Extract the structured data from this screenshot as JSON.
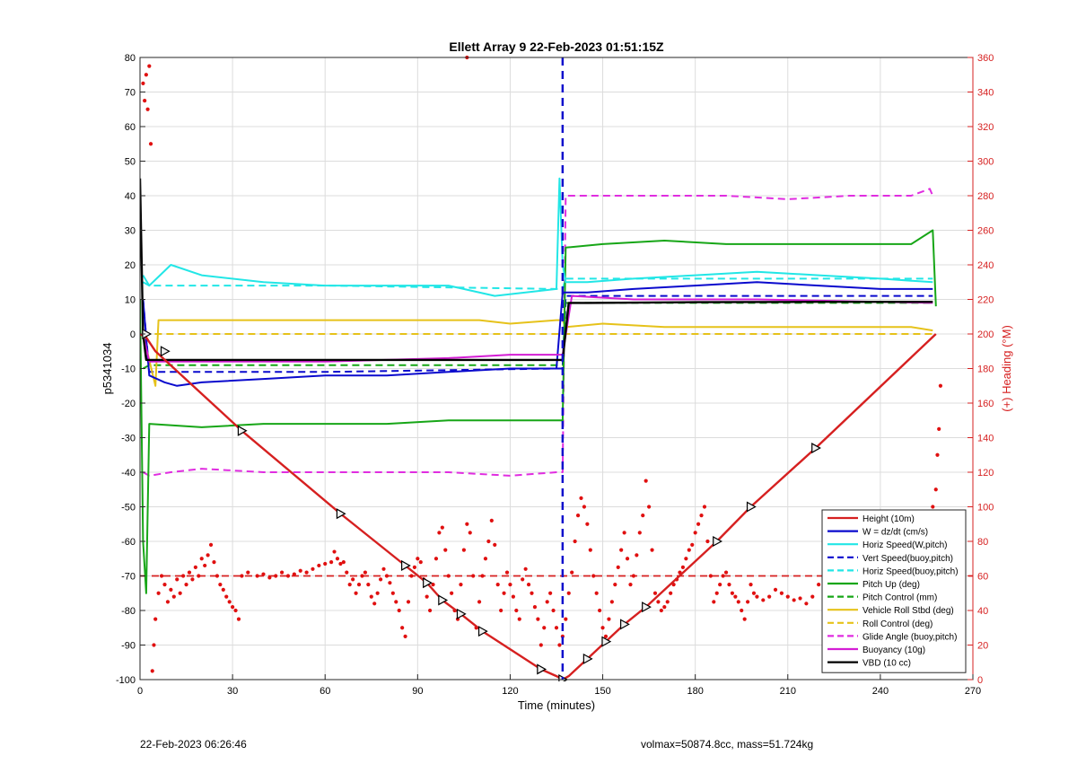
{
  "chart_data": {
    "type": "line",
    "title": "Ellett Array 9 22-Feb-2023 01:51:15Z",
    "xlabel": "Time (minutes)",
    "ylabel": "p5341034",
    "y2label": "(+) Heading (°M)",
    "xlim": [
      0,
      270
    ],
    "ylim": [
      -100,
      80
    ],
    "y2lim": [
      0,
      360
    ],
    "xticks": [
      0,
      30,
      60,
      90,
      120,
      150,
      180,
      210,
      240,
      270
    ],
    "yticks": [
      -100,
      -90,
      -80,
      -70,
      -60,
      -50,
      -40,
      -30,
      -20,
      -10,
      0,
      10,
      20,
      30,
      40,
      50,
      60,
      70,
      80
    ],
    "y2ticks": [
      0,
      20,
      40,
      60,
      80,
      100,
      120,
      140,
      160,
      180,
      200,
      220,
      240,
      260,
      280,
      300,
      320,
      340,
      360
    ],
    "grid": true,
    "legend_position": "bottom-right",
    "apogee_marker_x": 137,
    "colors": {
      "height": "#d62020",
      "w": "#0a0acd",
      "horiz": "#22e6e6",
      "pitch": "#17a617",
      "roll": "#e6c21a",
      "glide": "#e02de0",
      "buoy": "#d41ed4",
      "vbd": "#000000",
      "heading": "#e01010",
      "apogee": "#1010cc"
    },
    "series": [
      {
        "name": "Height (10m)",
        "axis": "left",
        "style": "solid",
        "color": "#d62020",
        "x": [
          0,
          2,
          5,
          33,
          65,
          86,
          93,
          98,
          104,
          111,
          130,
          135,
          137,
          139,
          145,
          151,
          157,
          164,
          187,
          198,
          219,
          258
        ],
        "y": [
          0,
          -1,
          -5,
          -28,
          -52,
          -67,
          -72,
          -77,
          -81,
          -86,
          -97,
          -99,
          -100,
          -99,
          -94,
          -89,
          -84,
          -79,
          -60,
          -50,
          -33,
          0
        ]
      },
      {
        "name": "W = dz/dt (cm/s)",
        "axis": "left",
        "style": "solid",
        "color": "#0a0acd",
        "x": [
          1,
          3,
          8,
          12,
          20,
          40,
          60,
          80,
          100,
          120,
          135,
          137,
          138,
          145,
          160,
          180,
          200,
          220,
          240,
          257
        ],
        "y": [
          10,
          -12,
          -14,
          -15,
          -14,
          -13,
          -12,
          -12,
          -11,
          -10,
          -10,
          12,
          12,
          12,
          13,
          14,
          15,
          14,
          13,
          13
        ]
      },
      {
        "name": "Horiz Speed(W,pitch)",
        "axis": "left",
        "style": "solid",
        "color": "#22e6e6",
        "x": [
          1,
          3,
          10,
          20,
          40,
          60,
          80,
          100,
          115,
          125,
          135,
          136,
          137,
          138,
          145,
          160,
          180,
          200,
          220,
          240,
          257
        ],
        "y": [
          17,
          14,
          20,
          17,
          15,
          14,
          14,
          14,
          11,
          12,
          13,
          45,
          20,
          15,
          15,
          16,
          17,
          18,
          17,
          16,
          15
        ]
      },
      {
        "name": "Vert Speed(buoy,pitch)",
        "axis": "left",
        "style": "dashed",
        "color": "#0a0acd",
        "x": [
          1,
          3,
          60,
          135,
          137,
          138,
          257
        ],
        "y": [
          10,
          -11,
          -11,
          -10,
          -10,
          11,
          11
        ]
      },
      {
        "name": "Horiz Speed(buoy,pitch)",
        "axis": "left",
        "style": "dashed",
        "color": "#22e6e6",
        "x": [
          1,
          3,
          60,
          135,
          137,
          138,
          257
        ],
        "y": [
          15,
          14,
          14,
          13,
          13,
          16,
          16
        ]
      },
      {
        "name": "Pitch Up (deg)",
        "axis": "left",
        "style": "solid",
        "color": "#17a617",
        "x": [
          0,
          1,
          2,
          3,
          20,
          40,
          60,
          80,
          100,
          120,
          135,
          137,
          138,
          150,
          170,
          190,
          210,
          230,
          250,
          257,
          258
        ],
        "y": [
          10,
          -60,
          -75,
          -26,
          -27,
          -26,
          -26,
          -26,
          -25,
          -25,
          -25,
          -25,
          25,
          26,
          27,
          26,
          26,
          26,
          26,
          30,
          8
        ]
      },
      {
        "name": "Pitch Control (mm)",
        "axis": "left",
        "style": "dashed",
        "color": "#17a617",
        "x": [
          1,
          3,
          135,
          137,
          138,
          257
        ],
        "y": [
          -10,
          -9,
          -9,
          -9,
          9,
          9
        ]
      },
      {
        "name": "Vehicle Roll Stbd (deg)",
        "axis": "left",
        "style": "solid",
        "color": "#e6c21a",
        "x": [
          1,
          5,
          6,
          30,
          60,
          90,
          110,
          120,
          135,
          137,
          138,
          150,
          170,
          190,
          210,
          230,
          250,
          257
        ],
        "y": [
          0,
          -15,
          4,
          4,
          4,
          4,
          4,
          3,
          4,
          4,
          2,
          3,
          2,
          2,
          2,
          2,
          2,
          1
        ]
      },
      {
        "name": "Roll Control (deg)",
        "axis": "left",
        "style": "dashed",
        "color": "#e6c21a",
        "x": [
          1,
          5,
          6,
          135,
          137,
          138,
          257
        ],
        "y": [
          0,
          0,
          0,
          0,
          0,
          0,
          0
        ]
      },
      {
        "name": "Glide Angle (buoy,pitch)",
        "axis": "left",
        "style": "dashed",
        "color": "#e02de0",
        "x": [
          1,
          3,
          10,
          20,
          40,
          60,
          80,
          100,
          120,
          135,
          137,
          138,
          150,
          170,
          190,
          210,
          230,
          250,
          256,
          257
        ],
        "y": [
          -40,
          -41,
          -40,
          -39,
          -40,
          -40,
          -40,
          -40,
          -41,
          -40,
          -40,
          40,
          40,
          40,
          40,
          39,
          40,
          40,
          42,
          40
        ]
      },
      {
        "name": "Buoyancy (10g)",
        "axis": "left",
        "style": "solid",
        "color": "#d41ed4",
        "x": [
          1,
          3,
          60,
          100,
          120,
          135,
          137,
          140,
          160,
          200,
          257
        ],
        "y": [
          0,
          -8,
          -8,
          -7,
          -6,
          -6,
          -6,
          11,
          10,
          10,
          9
        ]
      },
      {
        "name": "VBD (10 cc)",
        "axis": "left",
        "style": "solid",
        "color": "#000000",
        "x": [
          0,
          1,
          2,
          20,
          60,
          100,
          120,
          135,
          136,
          137,
          139,
          145,
          180,
          220,
          257
        ],
        "y": [
          45,
          0,
          -7.5,
          -7.5,
          -7.5,
          -7.5,
          -7.5,
          -7.5,
          -7.5,
          -7.5,
          9,
          9,
          9.2,
          9.3,
          9.3
        ]
      }
    ],
    "heading_reference": {
      "axis": "right",
      "style": "dashed",
      "color": "#d62020",
      "y": 60
    },
    "heading_points": [
      [
        1,
        345
      ],
      [
        1.5,
        335
      ],
      [
        2,
        350
      ],
      [
        2.5,
        330
      ],
      [
        3,
        355
      ],
      [
        3.5,
        310
      ],
      [
        4,
        5
      ],
      [
        4.5,
        20
      ],
      [
        5,
        35
      ],
      [
        6,
        50
      ],
      [
        7,
        60
      ],
      [
        8,
        55
      ],
      [
        9,
        45
      ],
      [
        10,
        52
      ],
      [
        11,
        48
      ],
      [
        12,
        58
      ],
      [
        13,
        50
      ],
      [
        14,
        60
      ],
      [
        15,
        55
      ],
      [
        16,
        62
      ],
      [
        17,
        58
      ],
      [
        18,
        65
      ],
      [
        19,
        60
      ],
      [
        20,
        70
      ],
      [
        21,
        66
      ],
      [
        22,
        72
      ],
      [
        23,
        78
      ],
      [
        24,
        68
      ],
      [
        25,
        60
      ],
      [
        26,
        55
      ],
      [
        27,
        52
      ],
      [
        28,
        48
      ],
      [
        29,
        45
      ],
      [
        30,
        42
      ],
      [
        31,
        40
      ],
      [
        32,
        35
      ],
      [
        33,
        60
      ],
      [
        35,
        62
      ],
      [
        38,
        60
      ],
      [
        40,
        61
      ],
      [
        42,
        59
      ],
      [
        44,
        60
      ],
      [
        46,
        62
      ],
      [
        48,
        60
      ],
      [
        50,
        61
      ],
      [
        52,
        63
      ],
      [
        54,
        62
      ],
      [
        56,
        64
      ],
      [
        58,
        66
      ],
      [
        60,
        67
      ],
      [
        62,
        68
      ],
      [
        63,
        74
      ],
      [
        64,
        70
      ],
      [
        65,
        67
      ],
      [
        66,
        68
      ],
      [
        67,
        62
      ],
      [
        68,
        55
      ],
      [
        69,
        58
      ],
      [
        70,
        50
      ],
      [
        71,
        55
      ],
      [
        72,
        60
      ],
      [
        73,
        62
      ],
      [
        74,
        55
      ],
      [
        75,
        48
      ],
      [
        76,
        44
      ],
      [
        77,
        50
      ],
      [
        78,
        58
      ],
      [
        79,
        64
      ],
      [
        80,
        60
      ],
      [
        81,
        56
      ],
      [
        82,
        50
      ],
      [
        83,
        45
      ],
      [
        84,
        40
      ],
      [
        85,
        30
      ],
      [
        86,
        25
      ],
      [
        87,
        45
      ],
      [
        88,
        60
      ],
      [
        89,
        65
      ],
      [
        90,
        70
      ],
      [
        91,
        68
      ],
      [
        92,
        58
      ],
      [
        93,
        48
      ],
      [
        94,
        40
      ],
      [
        95,
        55
      ],
      [
        96,
        70
      ],
      [
        97,
        85
      ],
      [
        98,
        88
      ],
      [
        99,
        75
      ],
      [
        100,
        60
      ],
      [
        101,
        50
      ],
      [
        102,
        40
      ],
      [
        103,
        35
      ],
      [
        104,
        55
      ],
      [
        105,
        75
      ],
      [
        106,
        90
      ],
      [
        107,
        85
      ],
      [
        108,
        60
      ],
      [
        109,
        30
      ],
      [
        110,
        45
      ],
      [
        111,
        60
      ],
      [
        112,
        70
      ],
      [
        113,
        80
      ],
      [
        114,
        92
      ],
      [
        115,
        78
      ],
      [
        116,
        55
      ],
      [
        117,
        40
      ],
      [
        118,
        50
      ],
      [
        119,
        62
      ],
      [
        120,
        55
      ],
      [
        121,
        48
      ],
      [
        122,
        40
      ],
      [
        123,
        35
      ],
      [
        124,
        58
      ],
      [
        125,
        64
      ],
      [
        126,
        55
      ],
      [
        127,
        50
      ],
      [
        128,
        42
      ],
      [
        129,
        35
      ],
      [
        130,
        20
      ],
      [
        131,
        30
      ],
      [
        132,
        45
      ],
      [
        133,
        50
      ],
      [
        134,
        40
      ],
      [
        135,
        30
      ],
      [
        136,
        20
      ],
      [
        137,
        25
      ],
      [
        138,
        35
      ],
      [
        139,
        50
      ],
      [
        140,
        62
      ],
      [
        141,
        80
      ],
      [
        142,
        95
      ],
      [
        143,
        105
      ],
      [
        144,
        100
      ],
      [
        145,
        90
      ],
      [
        146,
        75
      ],
      [
        147,
        60
      ],
      [
        148,
        50
      ],
      [
        149,
        40
      ],
      [
        150,
        30
      ],
      [
        151,
        25
      ],
      [
        152,
        35
      ],
      [
        153,
        45
      ],
      [
        154,
        55
      ],
      [
        155,
        65
      ],
      [
        156,
        75
      ],
      [
        157,
        85
      ],
      [
        158,
        70
      ],
      [
        159,
        55
      ],
      [
        160,
        60
      ],
      [
        161,
        72
      ],
      [
        162,
        85
      ],
      [
        163,
        95
      ],
      [
        164,
        115
      ],
      [
        165,
        100
      ],
      [
        166,
        75
      ],
      [
        167,
        50
      ],
      [
        168,
        45
      ],
      [
        169,
        40
      ],
      [
        170,
        42
      ],
      [
        171,
        45
      ],
      [
        172,
        50
      ],
      [
        173,
        55
      ],
      [
        174,
        58
      ],
      [
        175,
        62
      ],
      [
        176,
        65
      ],
      [
        177,
        70
      ],
      [
        178,
        75
      ],
      [
        179,
        78
      ],
      [
        180,
        85
      ],
      [
        181,
        90
      ],
      [
        182,
        95
      ],
      [
        183,
        100
      ],
      [
        184,
        80
      ],
      [
        185,
        60
      ],
      [
        186,
        45
      ],
      [
        187,
        50
      ],
      [
        188,
        55
      ],
      [
        189,
        60
      ],
      [
        190,
        62
      ],
      [
        191,
        55
      ],
      [
        192,
        50
      ],
      [
        193,
        48
      ],
      [
        194,
        45
      ],
      [
        195,
        40
      ],
      [
        196,
        35
      ],
      [
        197,
        45
      ],
      [
        198,
        55
      ],
      [
        199,
        50
      ],
      [
        200,
        48
      ],
      [
        202,
        46
      ],
      [
        204,
        48
      ],
      [
        206,
        52
      ],
      [
        208,
        50
      ],
      [
        210,
        48
      ],
      [
        212,
        46
      ],
      [
        214,
        47
      ],
      [
        216,
        44
      ],
      [
        218,
        48
      ],
      [
        220,
        55
      ],
      [
        222,
        60
      ],
      [
        224,
        62
      ],
      [
        226,
        65
      ],
      [
        228,
        62
      ],
      [
        230,
        64
      ],
      [
        232,
        66
      ],
      [
        234,
        62
      ],
      [
        236,
        60
      ],
      [
        238,
        62
      ],
      [
        240,
        64
      ],
      [
        242,
        62
      ],
      [
        244,
        60
      ],
      [
        246,
        63
      ],
      [
        248,
        62
      ],
      [
        250,
        61
      ],
      [
        252,
        60
      ],
      [
        254,
        62
      ],
      [
        256,
        63
      ],
      [
        257,
        100
      ],
      [
        258,
        110
      ],
      [
        258.5,
        130
      ],
      [
        259,
        145
      ],
      [
        259.5,
        170
      ],
      [
        106,
        360
      ]
    ],
    "annotation_markers": [
      {
        "x": 2,
        "y": 0
      },
      {
        "x": 8,
        "y": -5
      },
      {
        "x": 33,
        "y": -28
      },
      {
        "x": 65,
        "y": -52
      },
      {
        "x": 86,
        "y": -67
      },
      {
        "x": 93,
        "y": -72
      },
      {
        "x": 98,
        "y": -77
      },
      {
        "x": 104,
        "y": -81
      },
      {
        "x": 111,
        "y": -86
      },
      {
        "x": 130,
        "y": -97
      },
      {
        "x": 137,
        "y": -100
      },
      {
        "x": 145,
        "y": -94
      },
      {
        "x": 151,
        "y": -89
      },
      {
        "x": 157,
        "y": -84
      },
      {
        "x": 164,
        "y": -79
      },
      {
        "x": 187,
        "y": -60
      },
      {
        "x": 198,
        "y": -50
      },
      {
        "x": 219,
        "y": -33
      }
    ]
  },
  "footer": {
    "left": "22-Feb-2023 06:26:46",
    "right": "volmax=50874.8cc, mass=51.724kg"
  }
}
